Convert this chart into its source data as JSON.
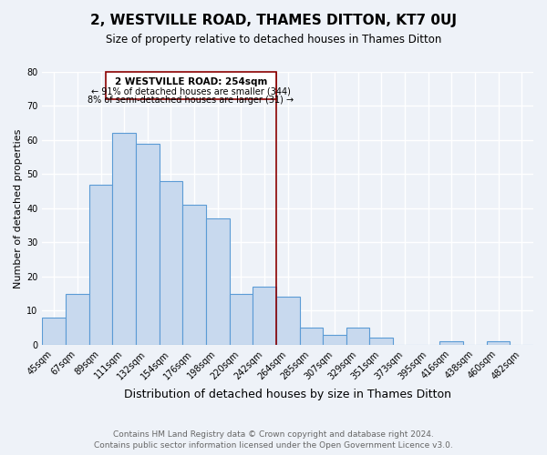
{
  "title": "2, WESTVILLE ROAD, THAMES DITTON, KT7 0UJ",
  "subtitle": "Size of property relative to detached houses in Thames Ditton",
  "xlabel": "Distribution of detached houses by size in Thames Ditton",
  "ylabel": "Number of detached properties",
  "bar_labels": [
    "45sqm",
    "67sqm",
    "89sqm",
    "111sqm",
    "132sqm",
    "154sqm",
    "176sqm",
    "198sqm",
    "220sqm",
    "242sqm",
    "264sqm",
    "285sqm",
    "307sqm",
    "329sqm",
    "351sqm",
    "373sqm",
    "395sqm",
    "416sqm",
    "438sqm",
    "460sqm",
    "482sqm"
  ],
  "bar_values": [
    8,
    15,
    47,
    62,
    59,
    48,
    41,
    37,
    15,
    17,
    14,
    5,
    3,
    5,
    2,
    0,
    0,
    1,
    0,
    1,
    0
  ],
  "bar_color": "#c8d9ee",
  "bar_edge_color": "#5b9bd5",
  "ylim": [
    0,
    80
  ],
  "yticks": [
    0,
    10,
    20,
    30,
    40,
    50,
    60,
    70,
    80
  ],
  "property_line_color": "#8b0000",
  "annotation_title": "2 WESTVILLE ROAD: 254sqm",
  "annotation_line1": "← 91% of detached houses are smaller (344)",
  "annotation_line2": "8% of semi-detached houses are larger (31) →",
  "annotation_box_color": "#8b0000",
  "footer_line1": "Contains HM Land Registry data © Crown copyright and database right 2024.",
  "footer_line2": "Contains public sector information licensed under the Open Government Licence v3.0.",
  "background_color": "#eef2f8",
  "grid_color": "#ffffff",
  "title_fontsize": 11,
  "subtitle_fontsize": 8.5,
  "xlabel_fontsize": 9,
  "ylabel_fontsize": 8,
  "tick_fontsize": 7,
  "footer_fontsize": 6.5,
  "annotation_fontsize": 7.5
}
